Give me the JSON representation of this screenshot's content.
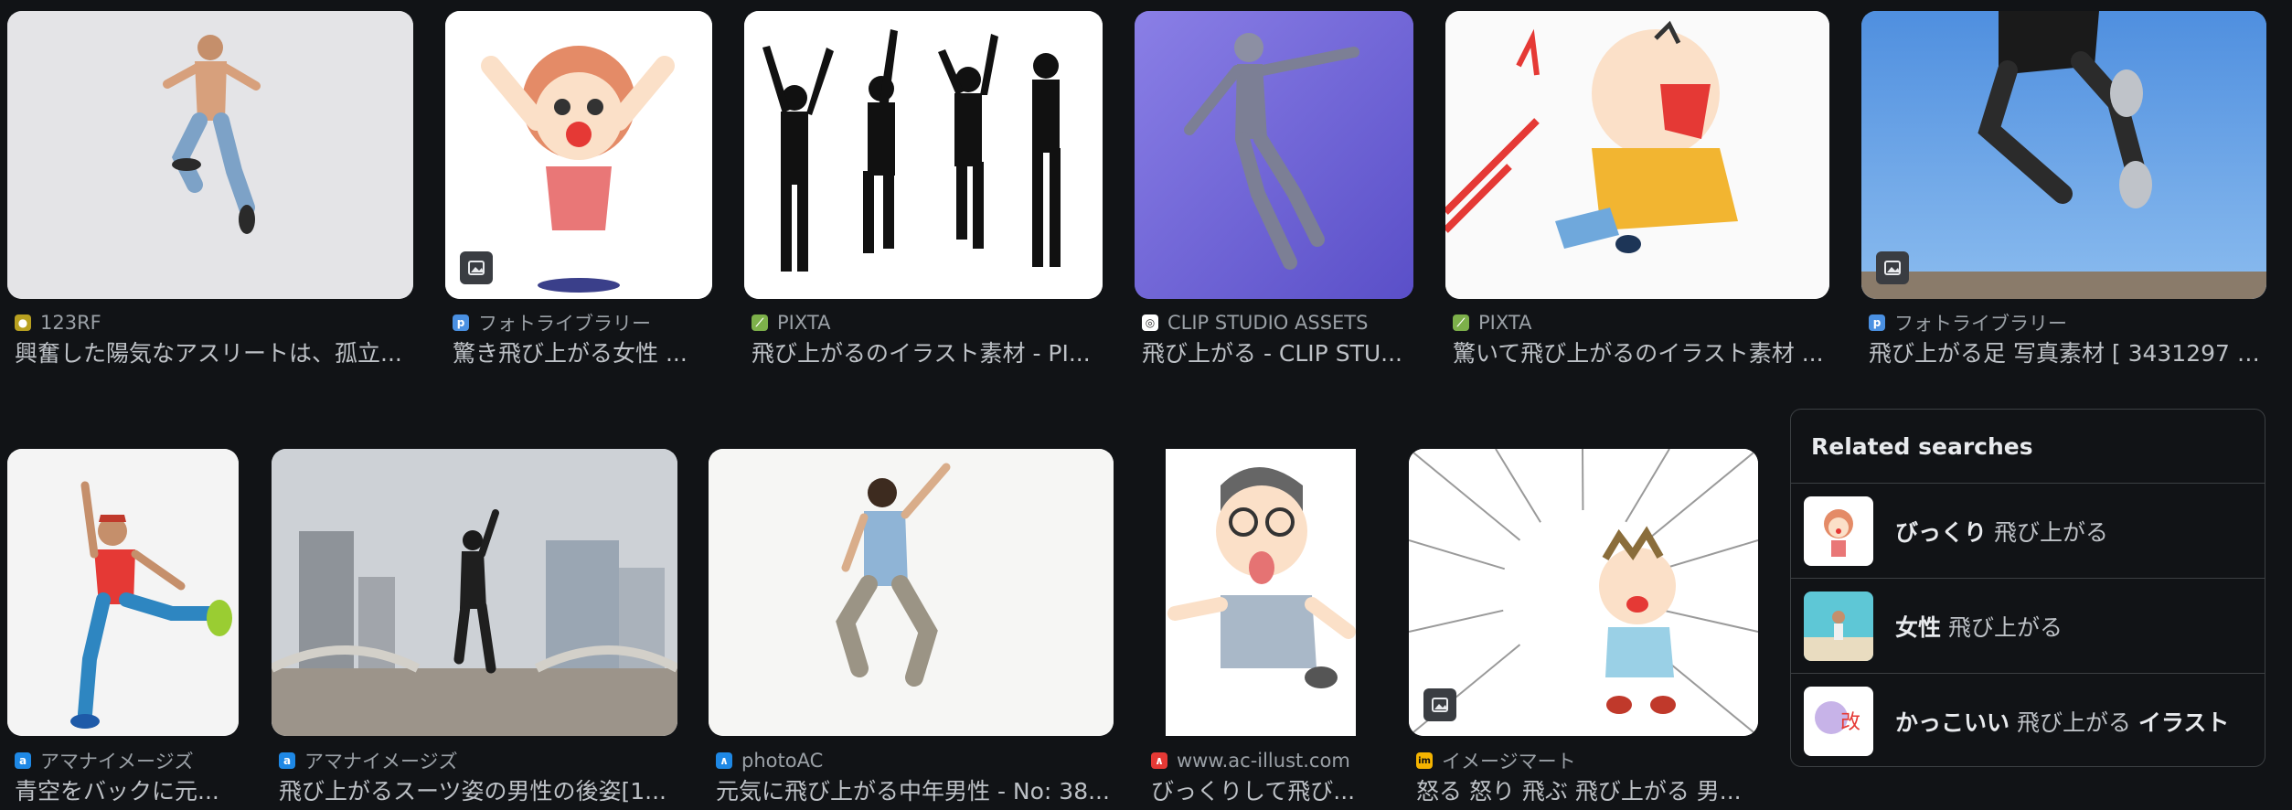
{
  "row1": [
    {
      "source": "123RF",
      "favicon_color": "#b8a020",
      "favicon_glyph": "●",
      "title": "興奮した陽気なアスリートは、孤立...",
      "has_badge": false
    },
    {
      "source": "フォトライブラリー",
      "favicon_color": "#4a90e2",
      "favicon_glyph": "p",
      "title": "驚き飛び上がる女性 ...",
      "has_badge": true
    },
    {
      "source": "PIXTA",
      "favicon_color": "#7db04a",
      "favicon_glyph": "⟋",
      "title": "飛び上がるのイラスト素材 - PI...",
      "has_badge": false
    },
    {
      "source": "CLIP STUDIO ASSETS",
      "favicon_color": "#ffffff",
      "favicon_glyph": "◎",
      "title": "飛び上がる - CLIP STU...",
      "has_badge": false
    },
    {
      "source": "PIXTA",
      "favicon_color": "#7db04a",
      "favicon_glyph": "⟋",
      "title": "驚いて飛び上がるのイラスト素材 ...",
      "has_badge": false
    },
    {
      "source": "フォトライブラリー",
      "favicon_color": "#4a90e2",
      "favicon_glyph": "p",
      "title": "飛び上がる足 写真素材 [ 3431297 ] ...",
      "has_badge": true
    }
  ],
  "row2": [
    {
      "source": "アマナイメージズ",
      "favicon_color": "#1e88e5",
      "favicon_glyph": "a",
      "title": "青空をバックに元...",
      "has_badge": false
    },
    {
      "source": "アマナイメージズ",
      "favicon_color": "#1e88e5",
      "favicon_glyph": "a",
      "title": "飛び上がるスーツ姿の男性の後姿[1...",
      "has_badge": false
    },
    {
      "source": "photoAC",
      "favicon_color": "#1e88e5",
      "favicon_glyph": "∧",
      "title": "元気に飛び上がる中年男性 - No: 38...",
      "has_badge": false
    },
    {
      "source": "www.ac-illust.com",
      "favicon_color": "#e53935",
      "favicon_glyph": "∧",
      "title": "びっくりして飛び...",
      "has_badge": false
    },
    {
      "source": "イメージマート",
      "favicon_color": "#f5b400",
      "favicon_glyph": "im",
      "title": "怒る 怒り 飛ぶ 飛び上がる 男...",
      "has_badge": true
    }
  ],
  "related": {
    "heading": "Related searches",
    "items": [
      {
        "bold": "びっくり",
        "rest": " 飛び上がる",
        "tail": ""
      },
      {
        "bold": "女性",
        "rest": " 飛び上がる",
        "tail": ""
      },
      {
        "bold": "かっこいい",
        "rest": " 飛び上がる ",
        "tail": "イラスト"
      }
    ]
  }
}
